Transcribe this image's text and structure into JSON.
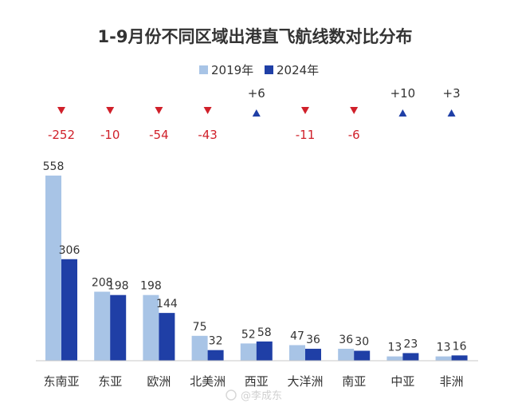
{
  "chart_data": {
    "type": "bar",
    "title": "1-9月份不同区域出港直飞航线数对比分布",
    "categories": [
      "东南亚",
      "东亚",
      "欧洲",
      "北美洲",
      "西亚",
      "大洋洲",
      "南亚",
      "中亚",
      "非洲"
    ],
    "series": [
      {
        "name": "2019年",
        "values": [
          558,
          208,
          198,
          75,
          52,
          47,
          36,
          13,
          13
        ]
      },
      {
        "name": "2024年",
        "values": [
          306,
          198,
          144,
          32,
          58,
          36,
          30,
          23,
          16
        ]
      }
    ],
    "changes": [
      {
        "label": "-252",
        "direction": "down"
      },
      {
        "label": "-10",
        "direction": "down"
      },
      {
        "label": "-54",
        "direction": "down"
      },
      {
        "label": "-43",
        "direction": "down"
      },
      {
        "label": "+6",
        "direction": "up"
      },
      {
        "label": "-11",
        "direction": "down"
      },
      {
        "label": "-6",
        "direction": "down"
      },
      {
        "label": "+10",
        "direction": "up"
      },
      {
        "label": "+3",
        "direction": "up"
      }
    ],
    "ylim": [
      0,
      558
    ],
    "legend_position": "top-center",
    "grid": false,
    "colors": {
      "series_2019": "#a8c4e6",
      "series_2024": "#1f3fa6",
      "down": "#d0202a",
      "up": "#1f3fa6",
      "axis": "#c8c8c8",
      "text": "#333333"
    }
  },
  "watermark": "@李成东"
}
